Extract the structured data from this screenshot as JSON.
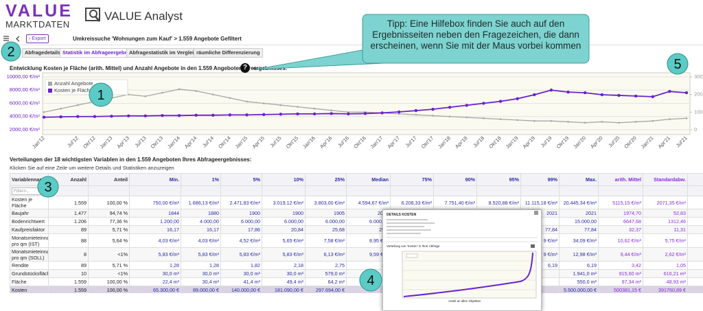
{
  "header": {
    "logo_top": "VALUE",
    "logo_bottom": "MARKTDATEN",
    "app_title": "VALUE Analyst"
  },
  "toolbar": {
    "export": "Export",
    "breadcrumb": "Umkreissuche 'Wohnungen zum Kauf' > 1.559 Angebote Gefiltert"
  },
  "tabs": [
    "Abfragedetails",
    "Statistik im Abfrageergebnis",
    "Abfragestatistik im Vergleich",
    "räumliche Differenzierung"
  ],
  "tooltip": "Tipp: Eine Hilfebox finden Sie auch auf den Ergebnisseiten neben den Fragezeichen, die dann erscheinen, wenn Sie mit der Maus vorbei kommen",
  "callouts": [
    "1",
    "2",
    "3",
    "4",
    "5"
  ],
  "chart_section": {
    "title_start": "Entwicklung Kosten je Fläche (arith. Mittel) und Anzahl Angebote in den 1.559 Angeboten Ihres",
    "help": "?",
    "title_end": "ergebnisses:"
  },
  "chart_data": {
    "type": "line",
    "categories": [
      "Jan'12",
      null,
      "Jul'12",
      "Okt'12",
      "Jan'13",
      "Apr'13",
      "Jul'13",
      "Okt'13",
      "Jan'14",
      "Apr'14",
      "Jul'14",
      "Okt'14",
      "Jan'15",
      "Apr'15",
      "Jul'15",
      "Okt'15",
      "Jan'16",
      "Apr'16",
      "Jul'16",
      "Okt'16",
      "Jan'17",
      "Apr'17",
      "Jul'17",
      "Okt'17",
      "Jan'18",
      "Apr'18",
      "Jul'18",
      "Okt'18",
      "Jan'19",
      "Apr'19",
      "Jul'19",
      "Okt'19",
      "Jan'20",
      "Apr'20",
      "Jul'20",
      "Okt'20",
      "Jan'21",
      "Apr'21",
      "Jul'21"
    ],
    "series": [
      {
        "name": "Anzahl Angebote",
        "color": "#a6a6a6",
        "axis": "y2",
        "values": [
          100,
          120,
          140,
          160,
          180,
          200,
          190,
          210,
          230,
          220,
          200,
          180,
          160,
          150,
          140,
          130,
          120,
          110,
          100,
          100,
          95,
          90,
          85,
          80,
          75,
          70,
          65,
          60,
          55,
          50,
          50,
          45,
          40,
          45,
          40,
          45,
          50,
          60,
          65
        ]
      },
      {
        "name": "Kosten je Fläche",
        "color": "#6a1fd1",
        "values": [
          3900,
          3950,
          4000,
          4000,
          4050,
          4100,
          4100,
          4150,
          4150,
          4200,
          4200,
          4250,
          4250,
          4300,
          4350,
          4400,
          4400,
          4450,
          4400,
          4450,
          4550,
          4700,
          4900,
          5100,
          5400,
          5700,
          6000,
          6300,
          6700,
          7300,
          8000,
          7700,
          7600,
          7300,
          7200,
          7100,
          7000,
          7800,
          7600
        ]
      }
    ],
    "ylim": [
      2000,
      10000
    ],
    "yticks": [
      {
        "value": 2000,
        "label": "2000,00 €/m²"
      },
      {
        "value": 4000,
        "label": "4000,00 €/m²"
      },
      {
        "value": 6000,
        "label": "6000,00 €/m²"
      },
      {
        "value": 8000,
        "label": "8000,00 €/m²"
      },
      {
        "value": 10000,
        "label": "10000,00 €/m²"
      }
    ],
    "y2lim": [
      0,
      300
    ],
    "y2ticks": [
      0,
      100,
      200,
      300
    ],
    "grid": true,
    "legend": "top-left"
  },
  "table_section": {
    "title": "Verteilungen der 18 wichtigsten Variablen in den 1.559 Angeboten Ihres Abfrageergebnisses:",
    "hint": "Klicken Sie auf eine Zeile um weitere Details und Statistiken anzuzeigen"
  },
  "table": {
    "columns": [
      "Variablenname",
      "Anzahl",
      "Anteil",
      "Min.",
      "1%",
      "5%",
      "10%",
      "25%",
      "Median",
      "75%",
      "90%",
      "95%",
      "99%",
      "Max.",
      "arith. Mittel",
      "Standardabw.",
      "fläc"
    ],
    "filter_placeholder": "Filtern...",
    "rows": [
      [
        "Kosten je Fläche",
        "1.559",
        "100,00 %",
        "750,00 €/m²",
        "1.686,13 €/m²",
        "2.471,83 €/m²",
        "3.019,12 €/m²",
        "3.803,00 €/m²",
        "4.594,67 €/m²",
        "6.208,33 €/m²",
        "7.751,40 €/m²",
        "8.520,88 €/m²",
        "11.115,18 €/m²",
        "20.445,34 €/m²",
        "5115,15 €/m²",
        "2071,35 €/m²",
        "514"
      ],
      [
        "Baujahr",
        "1.477",
        "94,74 %",
        "1844",
        "1880",
        "1900",
        "1900",
        "1905",
        "2013",
        "2016",
        "2017",
        "2020",
        "2021",
        "2021",
        "1974,70",
        "52,83",
        null
      ],
      [
        "Bodenrichtwert",
        "1.206",
        "77,36 %",
        "1.200,00",
        "4.000,00",
        "6.000,00",
        "6.000,00",
        "6.000,00",
        "6.000,00",
        null,
        null,
        null,
        null,
        "15.000,00",
        "6647,68",
        "1312,46",
        null
      ],
      [
        "Kaufpreisfaktor",
        "89",
        "5,71 %",
        "16,17",
        "16,17",
        "17,86",
        "20,84",
        "25,68",
        "29,2",
        null,
        null,
        null,
        "77,84",
        "77,84",
        "32,37",
        "11,31",
        null
      ],
      [
        "Monatsmieteinnahme pro qm (IST)",
        "88",
        "5,64 %",
        "4,03 €/m²",
        "4,03 €/m²",
        "4,52 €/m²",
        "5,65 €/m²",
        "7,58 €/m²",
        "8,95 €/m",
        null,
        null,
        null,
        "9 €/m²",
        "34,09 €/m²",
        "10,62 €/m²",
        "5,75 €/m²",
        null
      ],
      [
        "Monatsmieteinnahme pro qm (SOLL)",
        "8",
        "<1%",
        "5,83 €/m²",
        "5,83 €/m²",
        "5,83 €/m²",
        "5,83 €/m²",
        "6,13 €/m²",
        "9,59 €/m",
        null,
        null,
        null,
        "9 €/m²",
        "12,98 €/m²",
        "9,44 €/m²",
        "2,62 €/m²",
        null
      ],
      [
        "Rendite",
        "89",
        "5,71 %",
        "1,28",
        "1,28",
        "1,82",
        "2,18",
        "2,75",
        "3,4",
        null,
        null,
        null,
        "6,19",
        "6,19",
        "3,42",
        "1,05",
        null
      ],
      [
        "Grundstücksfläche",
        "10",
        "<1%",
        "30,0 m²",
        "30,0 m²",
        "30,0 m²",
        "30,0 m²",
        "579,0 m²",
        "1.",
        null,
        null,
        null,
        null,
        "1.941,0 m²",
        "915,60 m²",
        "616,21 m²",
        null
      ],
      [
        "Fläche",
        "1.559",
        "100,00 %",
        "22,4 m²",
        "30,4 m²",
        "41,4 m²",
        "49,4 m²",
        "64,2 m²",
        null,
        null,
        null,
        null,
        null,
        "550,0 m²",
        "97,34 m²",
        "48,93 m²",
        null
      ],
      [
        "Kosten",
        "1.559",
        "100,00 %",
        "65.300,00 €",
        "89.000,00 €",
        "140.000,00 €",
        "181.090,00 €",
        "297.694,00 €",
        null,
        null,
        null,
        null,
        null,
        "5.500.000,00 €",
        "500381,15 €",
        "391760,89 €",
        null
      ]
    ]
  },
  "detail_popup": {
    "title": "DETAILS KOSTEN",
    "chart_title": "Verteilung von 'Kosten' in Ihrer Abfrage",
    "x_label": "Anteil an allen Objekten"
  }
}
